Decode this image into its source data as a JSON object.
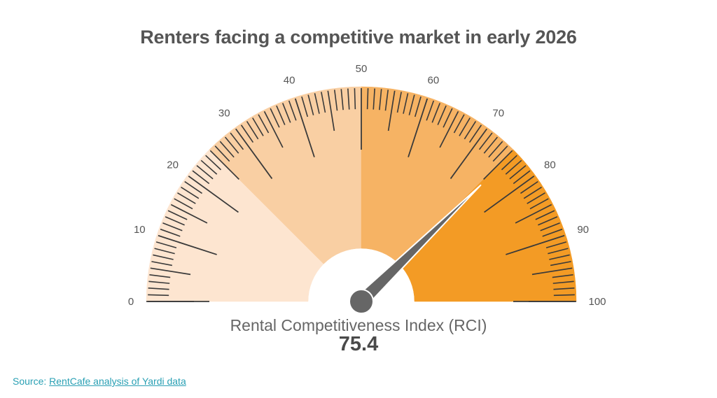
{
  "chart_data": {
    "type": "gauge",
    "title": "Renters facing a competitive market in early 2026",
    "label": "Rental Competitiveness Index (RCI)",
    "value": 75.4,
    "value_display": "75.4",
    "range": [
      0,
      100
    ],
    "major_ticks": [
      "0",
      "10",
      "20",
      "30",
      "40",
      "50",
      "60",
      "70",
      "80",
      "90",
      "100"
    ],
    "bands": [
      {
        "from": 0,
        "to": 25,
        "color": "#fde5d0"
      },
      {
        "from": 25,
        "to": 50,
        "color": "#f9cfa3"
      },
      {
        "from": 50,
        "to": 75,
        "color": "#f6b364"
      },
      {
        "from": 75,
        "to": 100,
        "color": "#f39b25"
      }
    ],
    "needle_color": "#666666"
  },
  "source": {
    "prefix": "Source: ",
    "link_text": "RentCafe analysis of Yardi data",
    "color": "#2aa0b4"
  }
}
